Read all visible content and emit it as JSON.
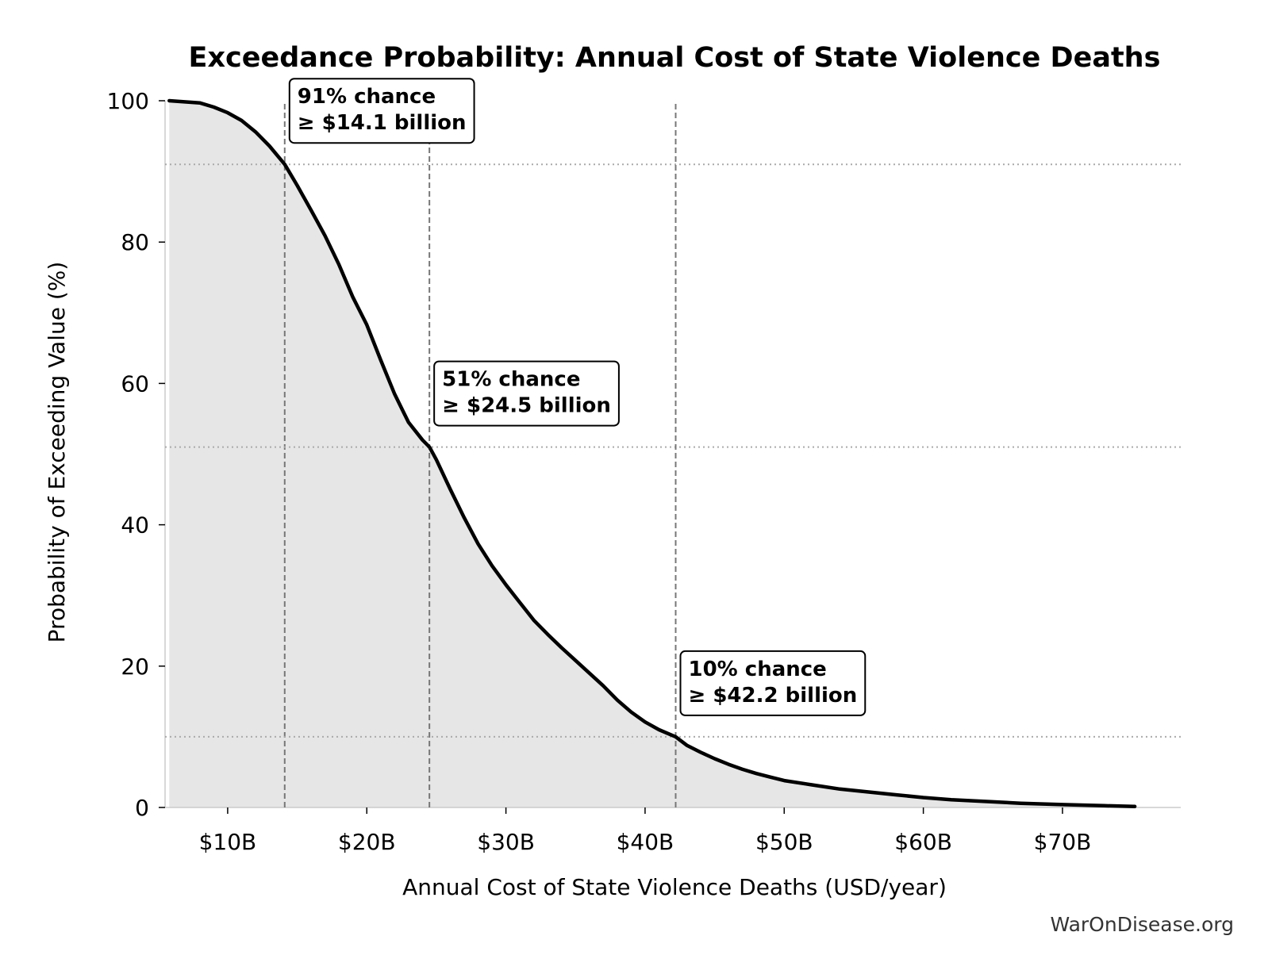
{
  "chart_data": {
    "type": "area",
    "title": "Exceedance Probability: Annual Cost of State Violence Deaths",
    "xlabel": "Annual Cost of State Violence Deaths (USD/year)",
    "ylabel": "Probability of Exceeding Value (%)",
    "xlim": [
      5.5,
      78.5
    ],
    "ylim": [
      0,
      100
    ],
    "x_ticks": [
      {
        "value": 10,
        "label": "$10B"
      },
      {
        "value": 20,
        "label": "$20B"
      },
      {
        "value": 30,
        "label": "$30B"
      },
      {
        "value": 40,
        "label": "$40B"
      },
      {
        "value": 50,
        "label": "$50B"
      },
      {
        "value": 60,
        "label": "$60B"
      },
      {
        "value": 70,
        "label": "$70B"
      }
    ],
    "y_ticks": [
      {
        "value": 0,
        "label": "0"
      },
      {
        "value": 20,
        "label": "20"
      },
      {
        "value": 40,
        "label": "40"
      },
      {
        "value": 60,
        "label": "60"
      },
      {
        "value": 80,
        "label": "80"
      },
      {
        "value": 100,
        "label": "100"
      }
    ],
    "grid": false,
    "series": [
      {
        "x": [
          5.8,
          8,
          9,
          10,
          11,
          12,
          13,
          14.1,
          15,
          16,
          17,
          18,
          19,
          20,
          21,
          22,
          23,
          24,
          24.5,
          25,
          26,
          27,
          28,
          29,
          30,
          31,
          32,
          33,
          34,
          35,
          36,
          37,
          38,
          39,
          40,
          41,
          42.2,
          43,
          44,
          45,
          46,
          47,
          48,
          49,
          50,
          52,
          54,
          56,
          58,
          60,
          62,
          65,
          67,
          70,
          73,
          75.2
        ],
        "y": [
          100,
          99.7,
          99.1,
          98.3,
          97.2,
          95.6,
          93.6,
          91,
          88,
          84.5,
          80.9,
          76.8,
          72.2,
          68.3,
          63.3,
          58.5,
          54.5,
          52,
          51,
          49.2,
          45,
          41,
          37.3,
          34.2,
          31.5,
          29,
          26.5,
          24.5,
          22.6,
          20.8,
          19,
          17.2,
          15.2,
          13.5,
          12.1,
          11,
          10,
          8.8,
          7.8,
          6.9,
          6.1,
          5.4,
          4.8,
          4.3,
          3.8,
          3.2,
          2.6,
          2.2,
          1.8,
          1.4,
          1.1,
          0.8,
          0.6,
          0.4,
          0.25,
          0.15
        ],
        "line_color": "#000000",
        "fill_color": "#e6e6e6"
      }
    ],
    "reference_lines": [
      {
        "x": 14.1,
        "y": 91
      },
      {
        "x": 24.5,
        "y": 51
      },
      {
        "x": 42.2,
        "y": 10
      }
    ],
    "annotations": [
      {
        "line1": "91% chance",
        "line2": "≥ $14.1 billion",
        "x": 14.1,
        "y": 91
      },
      {
        "line1": "51% chance",
        "line2": "≥ $24.5 billion",
        "x": 24.5,
        "y": 51
      },
      {
        "line1": "10% chance",
        "line2": "≥ $42.2 billion",
        "x": 42.2,
        "y": 10
      }
    ],
    "footer": "WarOnDisease.org"
  }
}
